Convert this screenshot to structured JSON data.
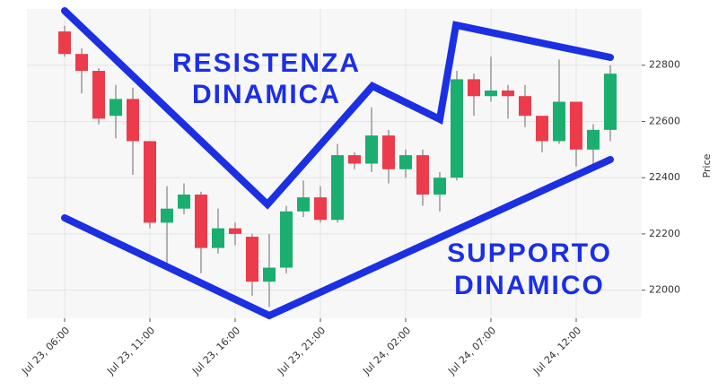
{
  "chart_data": {
    "type": "candlestick",
    "categories": [
      "Jul 23, 06:00",
      null,
      null,
      null,
      null,
      "Jul 23, 11:00",
      null,
      null,
      null,
      null,
      "Jul 23, 16:00",
      null,
      null,
      null,
      null,
      "Jul 23, 21:00",
      null,
      null,
      null,
      null,
      "Jul 24, 02:00",
      null,
      null,
      null,
      null,
      "Jul 24, 07:00",
      null,
      null,
      null,
      null,
      "Jul 24, 12:00",
      null,
      null
    ],
    "open": [
      22920,
      22840,
      22780,
      22620,
      22680,
      22530,
      22240,
      22290,
      22340,
      22150,
      22220,
      22190,
      22030,
      22080,
      22280,
      22330,
      22250,
      22480,
      22450,
      22550,
      22430,
      22480,
      22340,
      22400,
      22750,
      22690,
      22710,
      22690,
      22620,
      22530,
      22670,
      22500,
      22570
    ],
    "high": [
      22940,
      22860,
      22790,
      22730,
      22720,
      22530,
      22370,
      22380,
      22350,
      22290,
      22240,
      22200,
      22200,
      22300,
      22390,
      22370,
      22520,
      22490,
      22650,
      22570,
      22500,
      22500,
      22420,
      22780,
      22770,
      22830,
      22730,
      22730,
      22620,
      22820,
      22670,
      22590,
      22800
    ],
    "low": [
      22830,
      22700,
      22590,
      22540,
      22410,
      22220,
      22090,
      22270,
      22060,
      22130,
      22160,
      21980,
      21940,
      22060,
      22260,
      22240,
      22240,
      22430,
      22420,
      22380,
      22400,
      22300,
      22280,
      22390,
      22620,
      22670,
      22610,
      22580,
      22490,
      22520,
      22440,
      22450,
      22530
    ],
    "close": [
      22840,
      22780,
      22610,
      22680,
      22530,
      22240,
      22290,
      22340,
      22150,
      22220,
      22200,
      22030,
      22080,
      22280,
      22330,
      22250,
      22480,
      22450,
      22550,
      22430,
      22480,
      22340,
      22400,
      22750,
      22690,
      22710,
      22690,
      22620,
      22530,
      22670,
      22500,
      22570,
      22770
    ],
    "up_color": "#1aae6f",
    "down_color": "#ec3b4b",
    "ylim": [
      21900,
      23000
    ],
    "yticks": [
      22000,
      22200,
      22400,
      22600,
      22800
    ],
    "ylabel": "Price",
    "grid": true,
    "annotations": [
      {
        "lines": [
          "RESISTENZA",
          "DINAMICA"
        ]
      },
      {
        "lines": [
          "SUPPORTO",
          "DINAMICO"
        ]
      }
    ]
  }
}
